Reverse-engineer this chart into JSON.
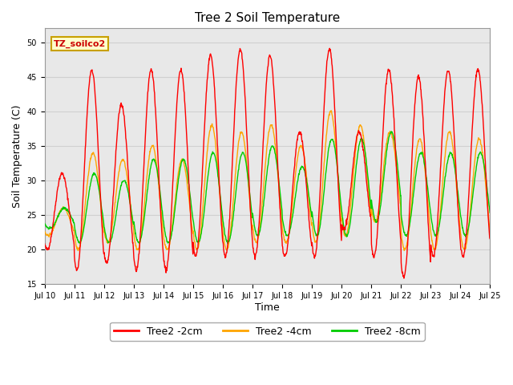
{
  "title": "Tree 2 Soil Temperature",
  "xlabel": "Time",
  "ylabel": "Soil Temperature (C)",
  "ylim": [
    15,
    52
  ],
  "xlim": [
    0,
    15
  ],
  "yticks": [
    15,
    20,
    25,
    30,
    35,
    40,
    45,
    50
  ],
  "xtick_labels": [
    "Jul 10",
    "Jul 11",
    "Jul 12",
    "Jul 13",
    "Jul 14",
    "Jul 15",
    "Jul 16",
    "Jul 17",
    "Jul 18",
    "Jul 19",
    "Jul 20",
    "Jul 21",
    "Jul 22",
    "Jul 23",
    "Jul 24",
    "Jul 25"
  ],
  "color_2cm": "#FF0000",
  "color_4cm": "#FFA500",
  "color_8cm": "#00CC00",
  "legend_label_2cm": "Tree2 -2cm",
  "legend_label_4cm": "Tree2 -4cm",
  "legend_label_8cm": "Tree2 -8cm",
  "annotation_text": "TZ_soilco2",
  "annotation_bg": "#FFFFCC",
  "annotation_border": "#C8A000",
  "grid_color": "#D0D0D0",
  "bg_color": "#E8E8E8",
  "title_fontsize": 11,
  "day_peaks_2cm": [
    31,
    46,
    41,
    46,
    46,
    48,
    49,
    48,
    37,
    49,
    37,
    46,
    45,
    46,
    46
  ],
  "day_mins_2cm": [
    20,
    17,
    18,
    17,
    17,
    19,
    19,
    19,
    19,
    19,
    23,
    19,
    16,
    19,
    19
  ],
  "day_peaks_4cm": [
    26,
    34,
    33,
    35,
    33,
    38,
    37,
    38,
    35,
    40,
    38,
    37,
    36,
    37,
    36
  ],
  "day_mins_4cm": [
    22,
    20,
    21,
    20,
    20,
    20,
    20,
    21,
    21,
    21,
    22,
    24,
    20,
    20,
    20
  ],
  "day_peaks_8cm": [
    26,
    31,
    30,
    33,
    33,
    34,
    34,
    35,
    32,
    36,
    36,
    37,
    34,
    34,
    34
  ],
  "day_mins_8cm": [
    23,
    21,
    21,
    21,
    21,
    21,
    21,
    22,
    22,
    22,
    22,
    24,
    22,
    22,
    22
  ]
}
